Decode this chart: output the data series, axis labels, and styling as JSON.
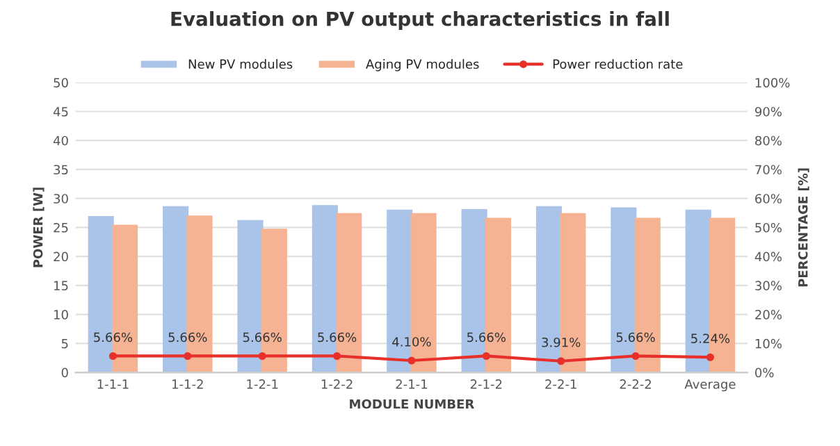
{
  "chart_data": {
    "type": "bar",
    "title": "Evaluation on PV output characteristics in fall",
    "xlabel": "MODULE NUMBER",
    "ylabel": "POWER [W]",
    "y2label": "PERCENTAGE [%]",
    "categories": [
      "1-1-1",
      "1-1-2",
      "1-2-1",
      "1-2-2",
      "2-1-1",
      "2-1-2",
      "2-2-1",
      "2-2-2",
      "Average"
    ],
    "series": [
      {
        "name": "New PV modules",
        "color": "#a9c4e8",
        "values": [
          26.8,
          28.5,
          26.1,
          28.7,
          27.9,
          28.0,
          28.5,
          28.3,
          27.9
        ]
      },
      {
        "name": "Aging PV modules",
        "color": "#f5b393",
        "values": [
          25.3,
          26.9,
          24.6,
          27.3,
          27.3,
          26.5,
          27.3,
          26.5,
          26.5
        ]
      },
      {
        "name": "Power reduction rate",
        "type": "line",
        "axis": "y2",
        "color": "#e8302a",
        "marker": "circle",
        "values": [
          5.66,
          5.66,
          5.66,
          5.66,
          4.1,
          5.66,
          3.91,
          5.66,
          5.24
        ],
        "value_labels": [
          "5.66%",
          "5.66%",
          "5.66%",
          "5.66%",
          "4.10%",
          "5.66%",
          "3.91%",
          "5.66%",
          "5.24%"
        ]
      }
    ],
    "ylim": [
      0,
      50
    ],
    "yticks": [
      0,
      5,
      10,
      15,
      20,
      25,
      30,
      35,
      40,
      45,
      50
    ],
    "y2lim": [
      0,
      100
    ],
    "y2ticks": [
      {
        "value": 0,
        "label": "0%"
      },
      {
        "value": 10,
        "label": "10%"
      },
      {
        "value": 20,
        "label": "20%"
      },
      {
        "value": 30,
        "label": "30%"
      },
      {
        "value": 40,
        "label": "40%"
      },
      {
        "value": 50,
        "label": "50%"
      },
      {
        "value": 60,
        "label": "60%"
      },
      {
        "value": 70,
        "label": "70%"
      },
      {
        "value": 80,
        "label": "80%"
      },
      {
        "value": 90,
        "label": "90%"
      },
      {
        "value": 100,
        "label": "100%"
      }
    ],
    "grid": "y",
    "legend": "top"
  }
}
